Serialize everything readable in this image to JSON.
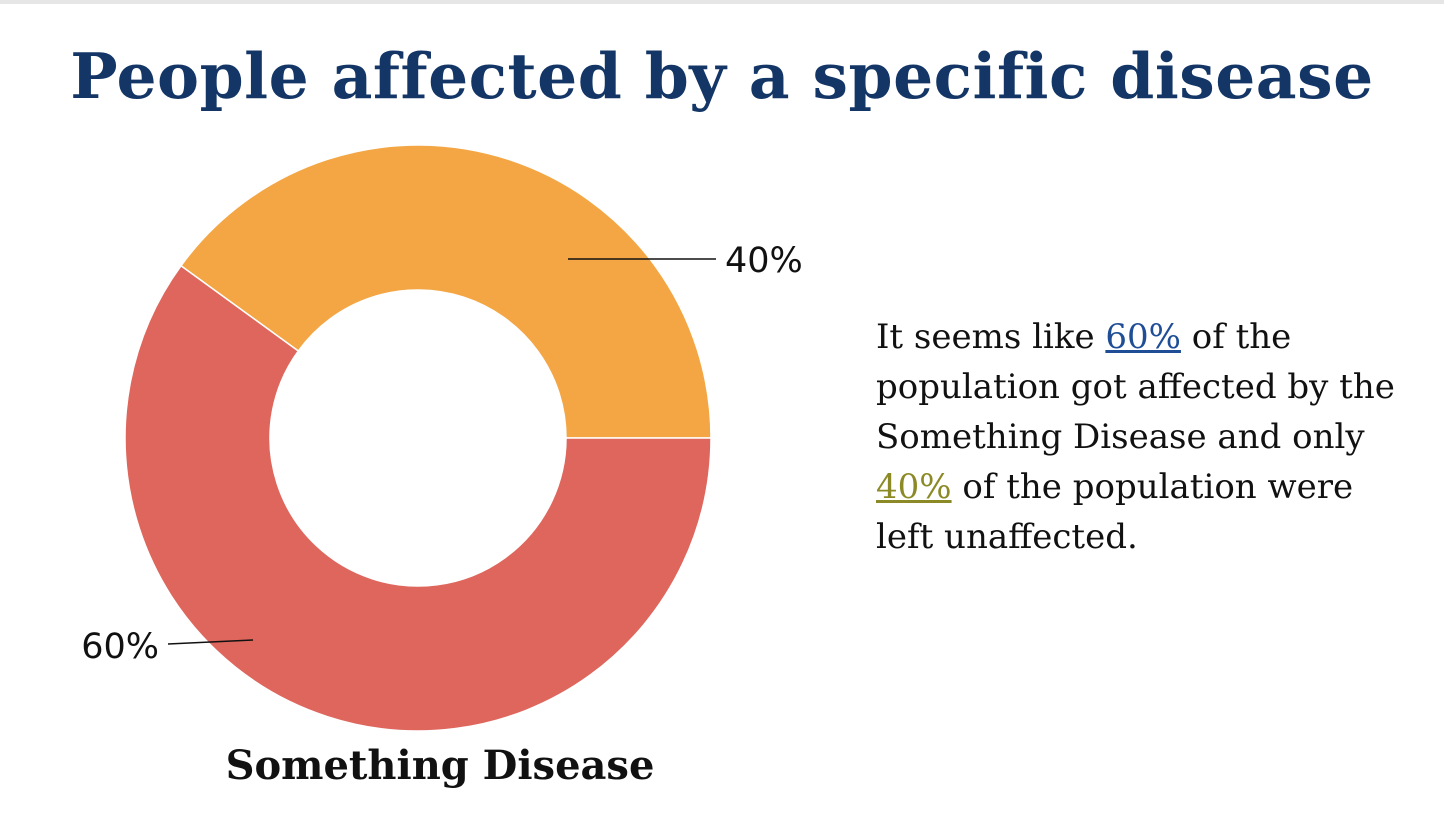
{
  "title": "People affected by a specific disease",
  "chart_data": {
    "type": "pie",
    "variant": "donut",
    "title": "Something Disease",
    "categories": [
      "Unaffected",
      "Affected"
    ],
    "values": [
      40,
      60
    ],
    "labels": [
      "40%",
      "60%"
    ],
    "colors": [
      "#f3a643",
      "#de665c"
    ],
    "legend": "none"
  },
  "description": {
    "part1": " It seems like ",
    "link1": "60%",
    "part2": " of the population got affected by the Something Disease and only ",
    "link2": "40%",
    "part3": " of the population were left unaffected.",
    "link1_color": "#1f4e96",
    "link2_color": "#8c8a26"
  }
}
